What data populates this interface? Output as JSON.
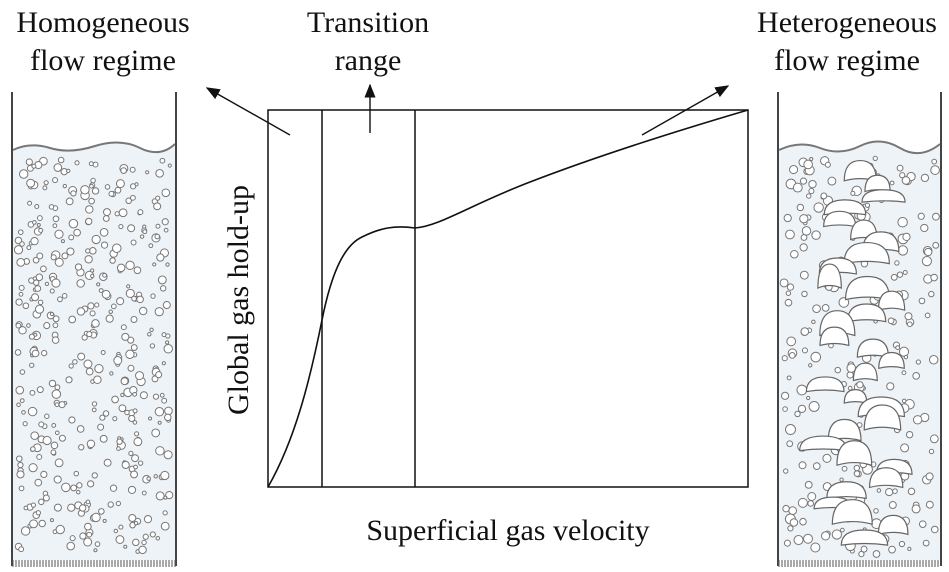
{
  "regimes": [
    {
      "lines": [
        "Homogeneous",
        "flow regime"
      ]
    },
    {
      "lines": [
        "Transition",
        "range"
      ]
    },
    {
      "lines": [
        "Heterogeneous",
        "flow regime"
      ]
    }
  ],
  "axes": {
    "y_label": "Global gas hold-up",
    "x_label": "Superficial gas velocity"
  }
}
